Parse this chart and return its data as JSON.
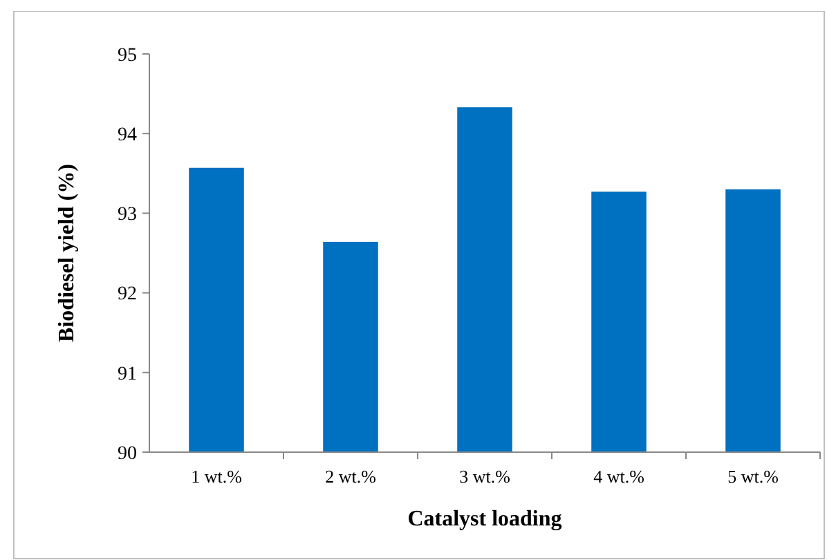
{
  "chart_data": {
    "type": "bar",
    "xlabel": "Catalyst loading",
    "ylabel": "Biodiesel yield (%)",
    "categories": [
      "1 wt.%",
      "2 wt.%",
      "3 wt.%",
      "4 wt.%",
      "5 wt.%"
    ],
    "values": [
      93.57,
      92.64,
      94.33,
      93.27,
      93.3
    ],
    "color": "#0070c0",
    "ylim": [
      90,
      95
    ],
    "yticks": [
      90,
      91,
      92,
      93,
      94,
      95
    ],
    "grid": false
  }
}
